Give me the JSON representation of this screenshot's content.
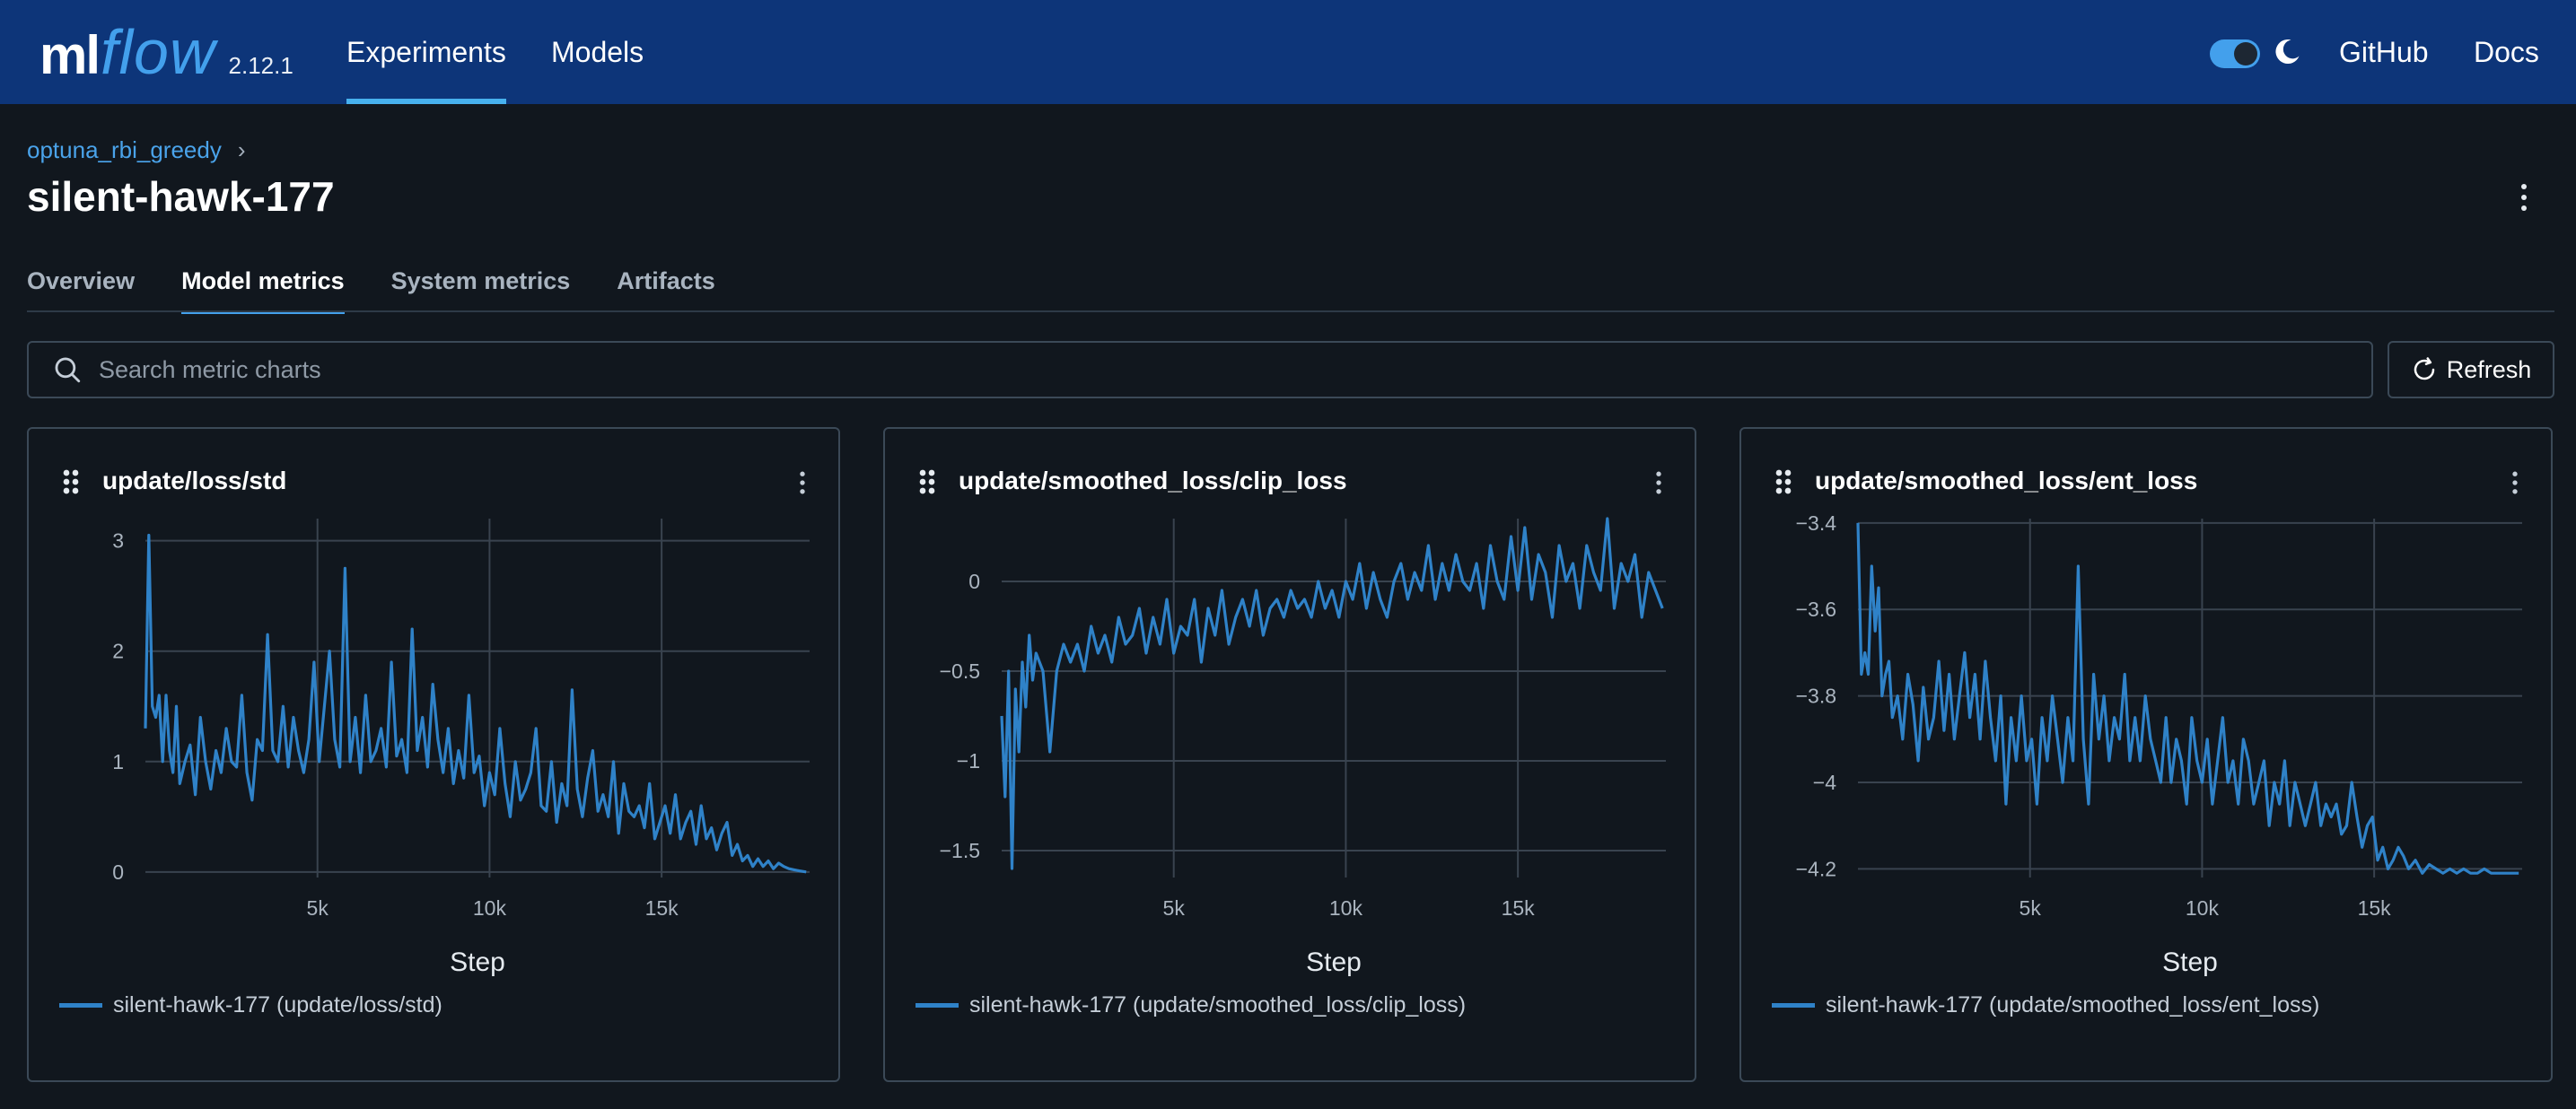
{
  "header": {
    "logo_ml": "ml",
    "logo_flow": "flow",
    "version": "2.12.1",
    "nav": [
      {
        "label": "Experiments"
      },
      {
        "label": "Models"
      }
    ],
    "github": "GitHub",
    "docs": "Docs",
    "theme_toggle": "dark",
    "accent": "#43a0ec",
    "bg": "#0d3579"
  },
  "breadcrumb": {
    "experiment": "optuna_rbi_greedy",
    "separator": "›"
  },
  "run_title": "silent-hawk-177",
  "tabs": [
    {
      "label": "Overview",
      "active": false
    },
    {
      "label": "Model metrics",
      "active": true
    },
    {
      "label": "System metrics",
      "active": false
    },
    {
      "label": "Artifacts",
      "active": false
    }
  ],
  "search": {
    "placeholder": "Search metric charts",
    "value": ""
  },
  "refresh_label": "Refresh",
  "line_color": "#2f82c8",
  "chart_data": [
    {
      "type": "line",
      "title": "update/loss/std",
      "xlabel": "Step",
      "ylabel": "",
      "xlim": [
        0,
        19300
      ],
      "ylim": [
        -0.05,
        3.2
      ],
      "xticks": [
        5000,
        10000,
        15000
      ],
      "xtick_labels": [
        "5k",
        "10k",
        "15k"
      ],
      "yticks": [
        0,
        1,
        2,
        3
      ],
      "ytick_labels": [
        "0",
        "1",
        "2",
        "3"
      ],
      "grid": true,
      "legend": "silent-hawk-177 (update/loss/std)",
      "series": [
        {
          "name": "silent-hawk-177 (update/loss/std)",
          "x": [
            0,
            100,
            200,
            300,
            400,
            500,
            600,
            700,
            800,
            900,
            1000,
            1150,
            1300,
            1450,
            1600,
            1750,
            1900,
            2050,
            2200,
            2350,
            2500,
            2650,
            2800,
            2950,
            3100,
            3250,
            3400,
            3550,
            3700,
            3850,
            4000,
            4150,
            4300,
            4450,
            4600,
            4750,
            4900,
            5050,
            5200,
            5350,
            5500,
            5650,
            5800,
            5950,
            6100,
            6250,
            6400,
            6550,
            6700,
            6850,
            7000,
            7150,
            7300,
            7450,
            7600,
            7750,
            7900,
            8050,
            8200,
            8350,
            8500,
            8650,
            8800,
            8950,
            9100,
            9250,
            9400,
            9550,
            9700,
            9850,
            10000,
            10150,
            10300,
            10450,
            10600,
            10750,
            10900,
            11050,
            11200,
            11350,
            11500,
            11650,
            11800,
            11950,
            12100,
            12250,
            12400,
            12550,
            12700,
            12850,
            13000,
            13150,
            13300,
            13450,
            13600,
            13750,
            13900,
            14050,
            14200,
            14350,
            14500,
            14650,
            14800,
            14950,
            15100,
            15250,
            15400,
            15550,
            15700,
            15850,
            16000,
            16150,
            16300,
            16450,
            16600,
            16750,
            16900,
            17050,
            17200,
            17350,
            17500,
            17650,
            17800,
            17950,
            18100,
            18250,
            18400,
            18550,
            18700,
            18850,
            19000,
            19200
          ],
          "y": [
            1.3,
            3.05,
            1.5,
            1.4,
            1.6,
            1.0,
            1.6,
            1.1,
            0.9,
            1.5,
            0.8,
            1.0,
            1.15,
            0.7,
            1.4,
            1.0,
            0.75,
            1.1,
            0.9,
            1.3,
            1.0,
            0.95,
            1.6,
            0.9,
            0.65,
            1.2,
            1.1,
            2.15,
            1.1,
            1.0,
            1.5,
            0.95,
            1.4,
            1.1,
            0.9,
            1.2,
            1.9,
            1.0,
            1.5,
            2.0,
            1.2,
            0.95,
            2.75,
            1.0,
            1.4,
            0.9,
            1.6,
            1.0,
            1.1,
            1.3,
            0.95,
            1.9,
            1.05,
            1.2,
            0.9,
            2.2,
            1.1,
            1.4,
            0.95,
            1.7,
            1.2,
            0.9,
            1.3,
            0.8,
            1.1,
            0.85,
            1.6,
            0.9,
            1.05,
            0.6,
            0.9,
            0.7,
            1.3,
            0.8,
            0.5,
            1.0,
            0.65,
            0.75,
            0.9,
            1.3,
            0.6,
            0.55,
            1.0,
            0.45,
            0.8,
            0.6,
            1.65,
            0.75,
            0.5,
            0.85,
            1.1,
            0.55,
            0.7,
            0.5,
            1.0,
            0.35,
            0.8,
            0.55,
            0.5,
            0.6,
            0.4,
            0.8,
            0.3,
            0.45,
            0.6,
            0.35,
            0.7,
            0.3,
            0.45,
            0.55,
            0.25,
            0.6,
            0.3,
            0.4,
            0.2,
            0.35,
            0.45,
            0.15,
            0.25,
            0.1,
            0.15,
            0.05,
            0.12,
            0.05,
            0.1,
            0.03,
            0.08,
            0.05,
            0.03,
            0.02,
            0.01,
            0.0
          ]
        }
      ]
    },
    {
      "type": "line",
      "title": "update/smoothed_loss/clip_loss",
      "xlabel": "Step",
      "ylabel": "",
      "xlim": [
        0,
        19300
      ],
      "ylim": [
        -1.65,
        0.35
      ],
      "xticks": [
        5000,
        10000,
        15000
      ],
      "xtick_labels": [
        "5k",
        "10k",
        "15k"
      ],
      "yticks": [
        0,
        -0.5,
        -1,
        -1.5
      ],
      "ytick_labels": [
        "0",
        "−0.5",
        "−1",
        "−1.5"
      ],
      "grid": true,
      "legend": "silent-hawk-177 (update/smoothed_loss/clip_loss)",
      "series": [
        {
          "name": "silent-hawk-177 (update/smoothed_loss/clip_loss)",
          "x": [
            0,
            100,
            200,
            300,
            400,
            500,
            600,
            700,
            800,
            900,
            1000,
            1200,
            1400,
            1600,
            1800,
            2000,
            2200,
            2400,
            2600,
            2800,
            3000,
            3200,
            3400,
            3600,
            3800,
            4000,
            4200,
            4400,
            4600,
            4800,
            5000,
            5200,
            5400,
            5600,
            5800,
            6000,
            6200,
            6400,
            6600,
            6800,
            7000,
            7200,
            7400,
            7600,
            7800,
            8000,
            8200,
            8400,
            8600,
            8800,
            9000,
            9200,
            9400,
            9600,
            9800,
            10000,
            10200,
            10400,
            10600,
            10800,
            11000,
            11200,
            11400,
            11600,
            11800,
            12000,
            12200,
            12400,
            12600,
            12800,
            13000,
            13200,
            13400,
            13600,
            13800,
            14000,
            14200,
            14400,
            14600,
            14800,
            15000,
            15200,
            15400,
            15600,
            15800,
            16000,
            16200,
            16400,
            16600,
            16800,
            17000,
            17200,
            17400,
            17600,
            17800,
            18000,
            18200,
            18400,
            18600,
            18800,
            19000,
            19200
          ],
          "y": [
            -0.75,
            -1.2,
            -0.5,
            -1.6,
            -0.6,
            -0.95,
            -0.45,
            -0.7,
            -0.3,
            -0.55,
            -0.4,
            -0.5,
            -0.95,
            -0.5,
            -0.35,
            -0.45,
            -0.35,
            -0.5,
            -0.25,
            -0.4,
            -0.3,
            -0.45,
            -0.2,
            -0.35,
            -0.3,
            -0.15,
            -0.4,
            -0.2,
            -0.35,
            -0.1,
            -0.4,
            -0.25,
            -0.3,
            -0.1,
            -0.45,
            -0.15,
            -0.3,
            -0.05,
            -0.35,
            -0.2,
            -0.1,
            -0.25,
            -0.05,
            -0.3,
            -0.15,
            -0.1,
            -0.2,
            -0.05,
            -0.15,
            -0.1,
            -0.2,
            0.0,
            -0.15,
            -0.05,
            -0.2,
            0.0,
            -0.1,
            0.1,
            -0.15,
            0.05,
            -0.1,
            -0.2,
            0.0,
            0.1,
            -0.1,
            0.05,
            -0.05,
            0.2,
            -0.1,
            0.1,
            -0.05,
            0.15,
            0.0,
            -0.05,
            0.1,
            -0.15,
            0.2,
            0.0,
            -0.1,
            0.25,
            -0.05,
            0.3,
            -0.1,
            0.15,
            0.05,
            -0.2,
            0.2,
            0.0,
            0.1,
            -0.15,
            0.2,
            0.05,
            -0.05,
            0.35,
            -0.15,
            0.1,
            0.0,
            0.15,
            -0.2,
            0.05,
            -0.05,
            -0.15
          ]
        }
      ]
    },
    {
      "type": "line",
      "title": "update/smoothed_loss/ent_loss",
      "xlabel": "Step",
      "ylabel": "",
      "xlim": [
        0,
        19300
      ],
      "ylim": [
        -4.22,
        -3.39
      ],
      "xticks": [
        5000,
        10000,
        15000
      ],
      "xtick_labels": [
        "5k",
        "10k",
        "15k"
      ],
      "yticks": [
        -3.4,
        -3.6,
        -3.8,
        -4,
        -4.2
      ],
      "ytick_labels": [
        "−3.4",
        "−3.6",
        "−3.8",
        "−4",
        "−4.2"
      ],
      "grid": true,
      "legend": "silent-hawk-177 (update/smoothed_loss/ent_loss)",
      "series": [
        {
          "name": "silent-hawk-177 (update/smoothed_loss/ent_loss)",
          "x": [
            0,
            100,
            200,
            300,
            400,
            500,
            600,
            700,
            800,
            900,
            1000,
            1150,
            1300,
            1450,
            1600,
            1750,
            1900,
            2050,
            2200,
            2350,
            2500,
            2650,
            2800,
            2950,
            3100,
            3250,
            3400,
            3550,
            3700,
            3850,
            4000,
            4150,
            4300,
            4450,
            4600,
            4750,
            4900,
            5050,
            5200,
            5350,
            5500,
            5650,
            5800,
            5950,
            6100,
            6250,
            6400,
            6550,
            6700,
            6850,
            7000,
            7150,
            7300,
            7450,
            7600,
            7750,
            7900,
            8050,
            8200,
            8350,
            8500,
            8650,
            8800,
            8950,
            9100,
            9250,
            9400,
            9550,
            9700,
            9850,
            10000,
            10150,
            10300,
            10450,
            10600,
            10750,
            10900,
            11050,
            11200,
            11350,
            11500,
            11650,
            11800,
            11950,
            12100,
            12250,
            12400,
            12550,
            12700,
            12850,
            13000,
            13150,
            13300,
            13450,
            13600,
            13750,
            13900,
            14050,
            14200,
            14350,
            14500,
            14650,
            14800,
            14950,
            15100,
            15250,
            15400,
            15550,
            15700,
            15850,
            16000,
            16200,
            16400,
            16600,
            16800,
            17000,
            17200,
            17400,
            17600,
            17800,
            18000,
            18200,
            18400,
            18600,
            18800,
            19000,
            19200
          ],
          "y": [
            -3.4,
            -3.75,
            -3.7,
            -3.75,
            -3.5,
            -3.65,
            -3.55,
            -3.8,
            -3.75,
            -3.72,
            -3.85,
            -3.8,
            -3.9,
            -3.75,
            -3.82,
            -3.95,
            -3.78,
            -3.9,
            -3.85,
            -3.72,
            -3.88,
            -3.75,
            -3.9,
            -3.8,
            -3.7,
            -3.85,
            -3.75,
            -3.9,
            -3.72,
            -3.85,
            -3.95,
            -3.8,
            -4.05,
            -3.85,
            -3.95,
            -3.8,
            -3.95,
            -3.9,
            -4.05,
            -3.85,
            -3.95,
            -3.8,
            -3.9,
            -4.0,
            -3.85,
            -3.95,
            -3.5,
            -3.9,
            -4.05,
            -3.75,
            -3.9,
            -3.8,
            -3.95,
            -3.85,
            -3.9,
            -3.75,
            -3.95,
            -3.85,
            -3.95,
            -3.8,
            -3.9,
            -3.95,
            -4.0,
            -3.85,
            -4.0,
            -3.9,
            -3.95,
            -4.05,
            -3.85,
            -3.95,
            -4.0,
            -3.9,
            -4.05,
            -3.95,
            -3.85,
            -4.0,
            -3.95,
            -4.05,
            -3.9,
            -3.95,
            -4.05,
            -4.0,
            -3.95,
            -4.1,
            -4.0,
            -4.05,
            -3.95,
            -4.1,
            -4.0,
            -4.05,
            -4.1,
            -4.05,
            -4.0,
            -4.1,
            -4.05,
            -4.08,
            -4.05,
            -4.12,
            -4.1,
            -4.0,
            -4.08,
            -4.15,
            -4.1,
            -4.08,
            -4.18,
            -4.15,
            -4.2,
            -4.18,
            -4.15,
            -4.17,
            -4.2,
            -4.18,
            -4.21,
            -4.19,
            -4.2,
            -4.21,
            -4.2,
            -4.21,
            -4.2,
            -4.21,
            -4.21,
            -4.2,
            -4.21,
            -4.21,
            -4.21,
            -4.21,
            -4.21
          ]
        }
      ]
    }
  ]
}
